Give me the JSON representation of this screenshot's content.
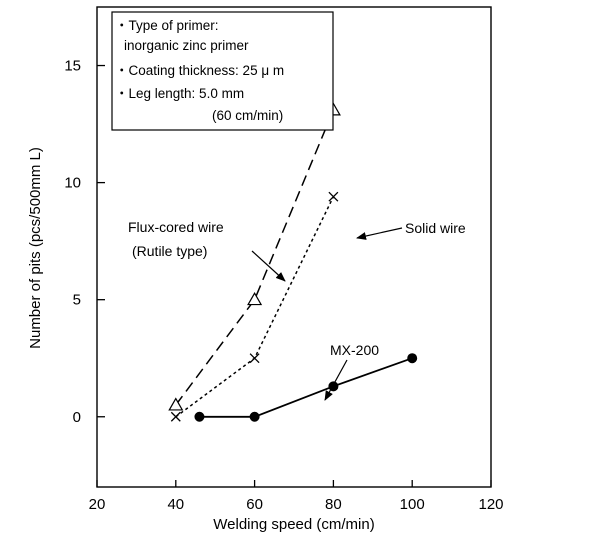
{
  "chart_data": {
    "type": "line",
    "xlabel": "Welding speed (cm/min)",
    "ylabel": "Number of pits (pcs/500mm L)",
    "xlim": [
      20,
      120
    ],
    "ylim": [
      -3,
      17.5
    ],
    "xticks": [
      "20",
      "40",
      "60",
      "80",
      "100",
      "120"
    ],
    "yticks": [
      "0",
      "5",
      "10",
      "15"
    ],
    "grid": false,
    "series": [
      {
        "name": "Flux-cored wire (Rutile type)",
        "marker": "triangle",
        "style": "dashed",
        "x": [
          40,
          60,
          80
        ],
        "y": [
          0.5,
          5.0,
          13.1
        ]
      },
      {
        "name": "Solid wire",
        "marker": "cross",
        "style": "dotted",
        "x": [
          40,
          60,
          80
        ],
        "y": [
          0.0,
          2.5,
          9.4
        ]
      },
      {
        "name": "MX-200",
        "marker": "filled-circle",
        "style": "solid",
        "x": [
          46,
          60,
          80,
          100
        ],
        "y": [
          0.0,
          0.0,
          1.3,
          2.5
        ]
      }
    ],
    "annotations": {
      "flux_line1": "Flux-cored wire",
      "flux_line2": "(Rutile type)",
      "solid": "Solid wire",
      "mx": "MX-200"
    },
    "conditions_box": {
      "line1": "・Type of primer:",
      "line2": "inorganic zinc primer",
      "line3": "・Coating thickness: 25 μ m",
      "line4": "・Leg length: 5.0 mm",
      "line5": "(60 cm/min)"
    }
  }
}
